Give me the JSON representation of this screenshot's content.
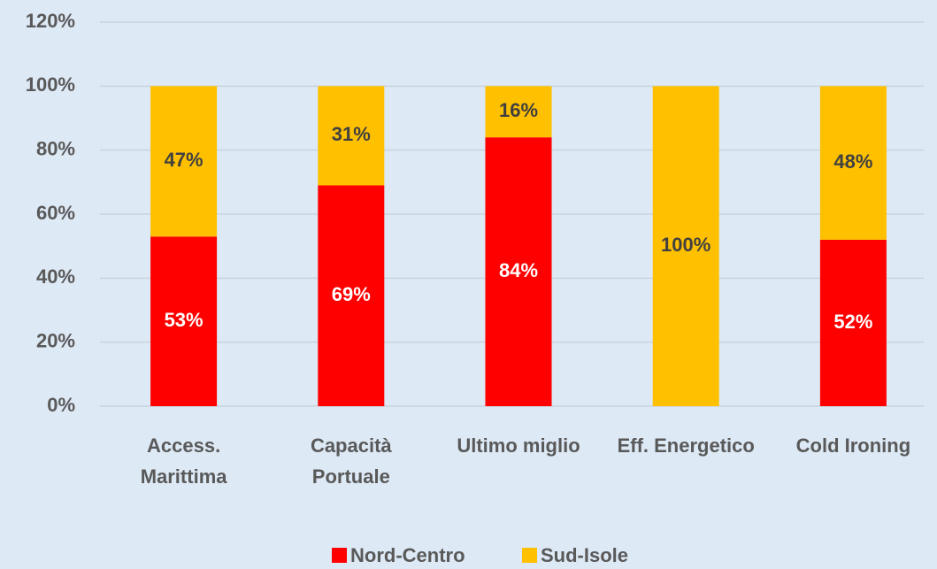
{
  "chart_data": {
    "type": "stacked_bar",
    "categories": [
      "Access.\nMarittima",
      "Capacità\nPortuale",
      "Ultimo miglio",
      "Eff. Energetico",
      "Cold Ironing"
    ],
    "series": [
      {
        "name": "Nord-Centro",
        "color": "#ff0000",
        "values": [
          53,
          69,
          84,
          0,
          52
        ],
        "value_labels": [
          "53%",
          "69%",
          "84%",
          null,
          "52%"
        ]
      },
      {
        "name": "Sud-Isole",
        "color": "#ffc000",
        "values": [
          47,
          31,
          16,
          100,
          48
        ],
        "value_labels": [
          "47%",
          "31%",
          "16%",
          "100%",
          "48%"
        ]
      }
    ],
    "ylim": [
      0,
      120
    ],
    "yticks": [
      {
        "value": 0,
        "label": "0%"
      },
      {
        "value": 20,
        "label": "20%"
      },
      {
        "value": 40,
        "label": "40%"
      },
      {
        "value": 60,
        "label": "60%"
      },
      {
        "value": 80,
        "label": "80%"
      },
      {
        "value": 100,
        "label": "100%"
      },
      {
        "value": 120,
        "label": "120%"
      }
    ],
    "grid": true,
    "legend": "bottom"
  }
}
